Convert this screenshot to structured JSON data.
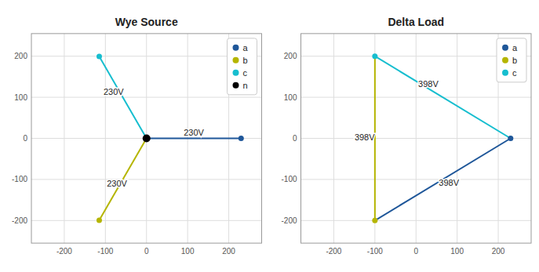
{
  "chart_data": [
    {
      "type": "scatter",
      "title": "Wye Source",
      "xlim": [
        -280,
        280
      ],
      "ylim": [
        -255,
        255
      ],
      "xticks": [
        -200,
        -100,
        0,
        100,
        200
      ],
      "yticks": [
        -200,
        -100,
        0,
        100,
        200
      ],
      "grid": true,
      "legend": "upper right",
      "series": [
        {
          "type": "line",
          "color": "#1f5799",
          "x": [
            0,
            230
          ],
          "values": [
            0,
            0
          ]
        },
        {
          "type": "scatter",
          "name": "a",
          "color": "#1f5799",
          "x": [
            230
          ],
          "values": [
            0
          ]
        },
        {
          "type": "line",
          "color": "#b5b500",
          "x": [
            0,
            -115
          ],
          "values": [
            0,
            -199.19
          ]
        },
        {
          "type": "scatter",
          "name": "b",
          "color": "#b5b500",
          "x": [
            -115
          ],
          "values": [
            -199.19
          ]
        },
        {
          "type": "line",
          "color": "#17becf",
          "x": [
            0,
            -115
          ],
          "values": [
            0,
            199.19
          ]
        },
        {
          "type": "scatter",
          "name": "c",
          "color": "#17becf",
          "x": [
            -115
          ],
          "values": [
            199.19
          ]
        },
        {
          "type": "scatter",
          "name": "n",
          "color": "#000000",
          "x": [
            0
          ],
          "values": [
            0
          ]
        }
      ],
      "annotations": [
        {
          "text": "230V",
          "x": 115,
          "y": 12
        },
        {
          "text": "230V",
          "x": -72,
          "y": -112
        },
        {
          "text": "230V",
          "x": -80,
          "y": 112
        }
      ]
    },
    {
      "type": "scatter",
      "title": "Delta Load",
      "xlim": [
        -280,
        280
      ],
      "ylim": [
        -255,
        255
      ],
      "xticks": [
        -200,
        -100,
        0,
        100,
        200
      ],
      "yticks": [
        -200,
        -100,
        0,
        100,
        200
      ],
      "grid": true,
      "legend": "upper right",
      "series": [
        {
          "type": "line",
          "color": "#1f5799",
          "x": [
            -100,
            230
          ],
          "values": [
            -200,
            0
          ]
        },
        {
          "type": "line",
          "color": "#b5b500",
          "x": [
            -100,
            -100
          ],
          "values": [
            -200,
            200
          ]
        },
        {
          "type": "line",
          "color": "#17becf",
          "x": [
            -100,
            230
          ],
          "values": [
            200,
            0
          ]
        },
        {
          "type": "scatter",
          "name": "a",
          "color": "#1f5799",
          "x": [
            230
          ],
          "values": [
            0
          ]
        },
        {
          "type": "scatter",
          "name": "b",
          "color": "#b5b500",
          "x": [
            -100
          ],
          "values": [
            -200
          ]
        },
        {
          "type": "scatter",
          "name": "c",
          "color": "#17becf",
          "x": [
            -100
          ],
          "values": [
            200
          ]
        }
      ],
      "annotations": [
        {
          "text": "398V",
          "x": 80,
          "y": -110
        },
        {
          "text": "398V",
          "x": -125,
          "y": 0
        },
        {
          "text": "398V",
          "x": 30,
          "y": 130
        }
      ]
    }
  ]
}
